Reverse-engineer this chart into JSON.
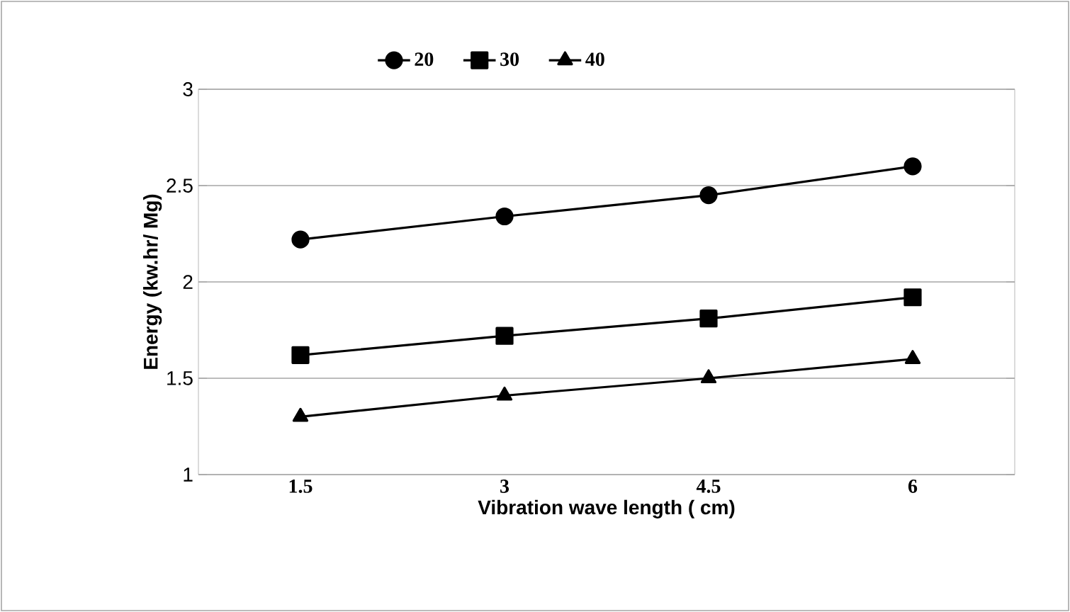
{
  "chart_data": {
    "type": "line",
    "xlabel": "Vibration wave length ( cm)",
    "ylabel": "Energy (kw.hr/ Mg)",
    "categories": [
      "1.5",
      "3",
      "4.5",
      "6"
    ],
    "series": [
      {
        "name": "20",
        "color": "#000000",
        "marker": "circle",
        "values": [
          2.22,
          2.34,
          2.45,
          2.6
        ]
      },
      {
        "name": "30",
        "color": "#000000",
        "marker": "square",
        "values": [
          1.62,
          1.72,
          1.81,
          1.92
        ]
      },
      {
        "name": "40",
        "color": "#000000",
        "marker": "triangle",
        "values": [
          1.3,
          1.41,
          1.5,
          1.6
        ]
      }
    ],
    "ylim": [
      1,
      3
    ],
    "yticks": [
      1,
      1.5,
      2,
      2.5,
      3
    ],
    "grid": "y",
    "legend": "top",
    "line_style": "solid"
  }
}
